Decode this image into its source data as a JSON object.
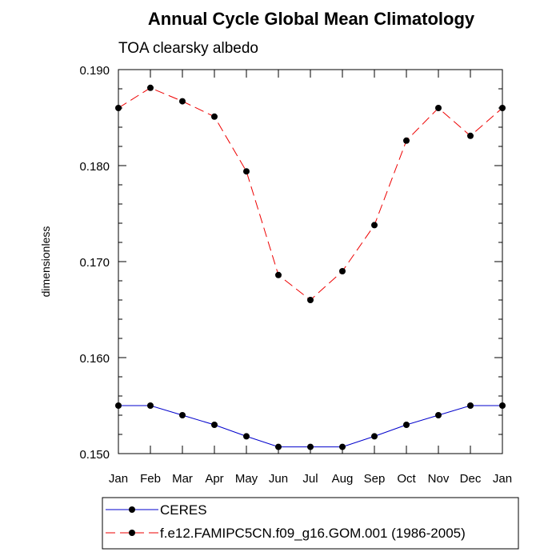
{
  "chart_data": {
    "type": "line",
    "title": "Annual Cycle Global Mean Climatology",
    "subtitle": "TOA clearsky albedo",
    "xlabel": "",
    "ylabel": "dimensionless",
    "categories": [
      "Jan",
      "Feb",
      "Mar",
      "Apr",
      "May",
      "Jun",
      "Jul",
      "Aug",
      "Sep",
      "Oct",
      "Nov",
      "Dec",
      "Jan"
    ],
    "yticks": [
      "0.150",
      "0.160",
      "0.170",
      "0.180",
      "0.190"
    ],
    "ylim": [
      0.15,
      0.19
    ],
    "grid": false,
    "legend_position": "bottom",
    "series": [
      {
        "name": "CERES",
        "color": "#0000cc",
        "line_style": "solid",
        "marker": "filled-circle",
        "values": [
          0.155,
          0.155,
          0.154,
          0.153,
          0.1518,
          0.1507,
          0.1507,
          0.1507,
          0.1518,
          0.153,
          0.154,
          0.155,
          0.155
        ]
      },
      {
        "name": "f.e12.FAMIPC5CN.f09_g16.GOM.001 (1986-2005)",
        "color": "#ee0000",
        "line_style": "dashed",
        "marker": "filled-circle",
        "values": [
          0.186,
          0.1881,
          0.1867,
          0.1851,
          0.1794,
          0.1686,
          0.166,
          0.169,
          0.1738,
          0.1826,
          0.186,
          0.1831,
          0.186
        ]
      }
    ]
  }
}
